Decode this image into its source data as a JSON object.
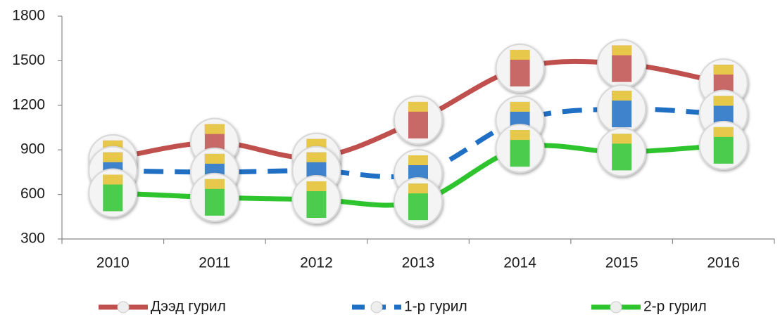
{
  "chart_data": {
    "type": "line",
    "categories": [
      "2010",
      "2011",
      "2012",
      "2013",
      "2014",
      "2015",
      "2016"
    ],
    "series": [
      {
        "name": "Дээд гурил",
        "color": "#c0504d",
        "dash": false,
        "values": [
          840,
          950,
          850,
          1100,
          1450,
          1480,
          1350
        ]
      },
      {
        "name": "1-р гурил",
        "color": "#1f6fc5",
        "dash": true,
        "values": [
          760,
          750,
          760,
          740,
          1100,
          1175,
          1140
        ]
      },
      {
        "name": "2-р гурил",
        "color": "#2ec42e",
        "dash": false,
        "values": [
          610,
          580,
          565,
          550,
          910,
          885,
          930
        ]
      }
    ],
    "ylim": [
      300,
      1800
    ],
    "yticks": [
      300,
      600,
      900,
      1200,
      1500,
      1800
    ],
    "grid": false,
    "legend": "bottom"
  }
}
